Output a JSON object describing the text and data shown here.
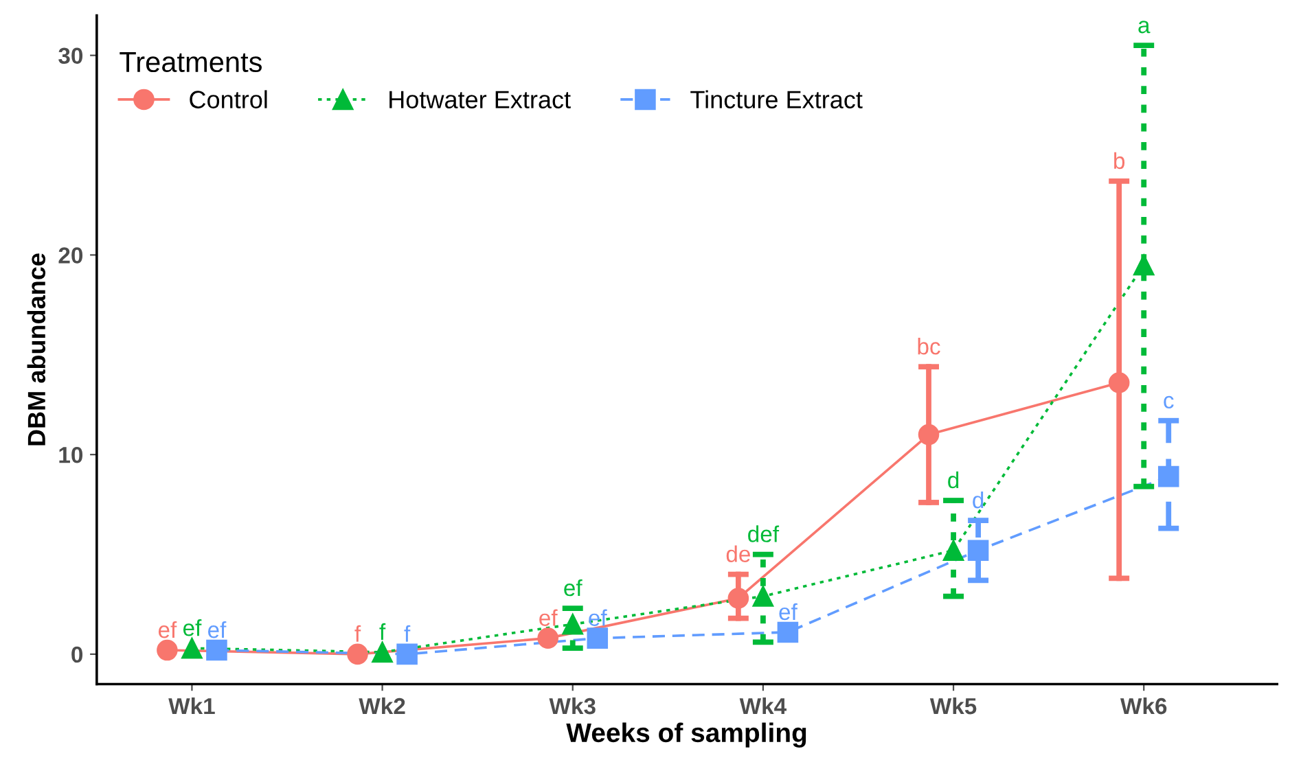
{
  "chart_data": {
    "type": "line",
    "xlabel": "Weeks of sampling",
    "ylabel": "DBM abundance",
    "legend_title": "Treatments",
    "legend": "top left",
    "categories": [
      "Wk1",
      "Wk2",
      "Wk3",
      "Wk4",
      "Wk5",
      "Wk6"
    ],
    "ylim": [
      -1.5,
      32
    ],
    "yticks": [
      0,
      10,
      20,
      30
    ],
    "grid": false,
    "series": [
      {
        "name": "Control",
        "color": "#f8766d",
        "marker": "circle",
        "line_style": "solid",
        "values": [
          0.2,
          0,
          0.8,
          2.8,
          11.0,
          13.6
        ],
        "errors": [
          null,
          null,
          null,
          [
            1.8,
            4.0
          ],
          [
            7.6,
            14.4
          ],
          [
            3.8,
            23.7
          ]
        ]
      },
      {
        "name": "Hotwater Extract",
        "color": "#00ba38",
        "marker": "triangle",
        "line_style": "dotted",
        "values": [
          0.3,
          0.1,
          1.5,
          2.9,
          5.2,
          19.5
        ],
        "errors": [
          null,
          null,
          [
            0.3,
            2.3
          ],
          [
            0.6,
            5.0
          ],
          [
            2.9,
            7.7
          ],
          [
            8.4,
            30.5
          ]
        ]
      },
      {
        "name": "Tincture Extract",
        "color": "#619cff",
        "marker": "square",
        "line_style": "dashed",
        "values": [
          0.2,
          0,
          0.8,
          1.1,
          5.2,
          8.9
        ],
        "errors": [
          null,
          null,
          null,
          null,
          [
            3.7,
            6.7
          ],
          [
            6.3,
            11.7
          ]
        ]
      }
    ],
    "annotations": [
      "ef",
      "f",
      "ef",
      "de",
      "bc",
      "b",
      "ef",
      "f",
      "ef",
      "def",
      "d",
      "a",
      "ef",
      "f",
      "ef",
      "ef",
      "d",
      "c"
    ]
  }
}
